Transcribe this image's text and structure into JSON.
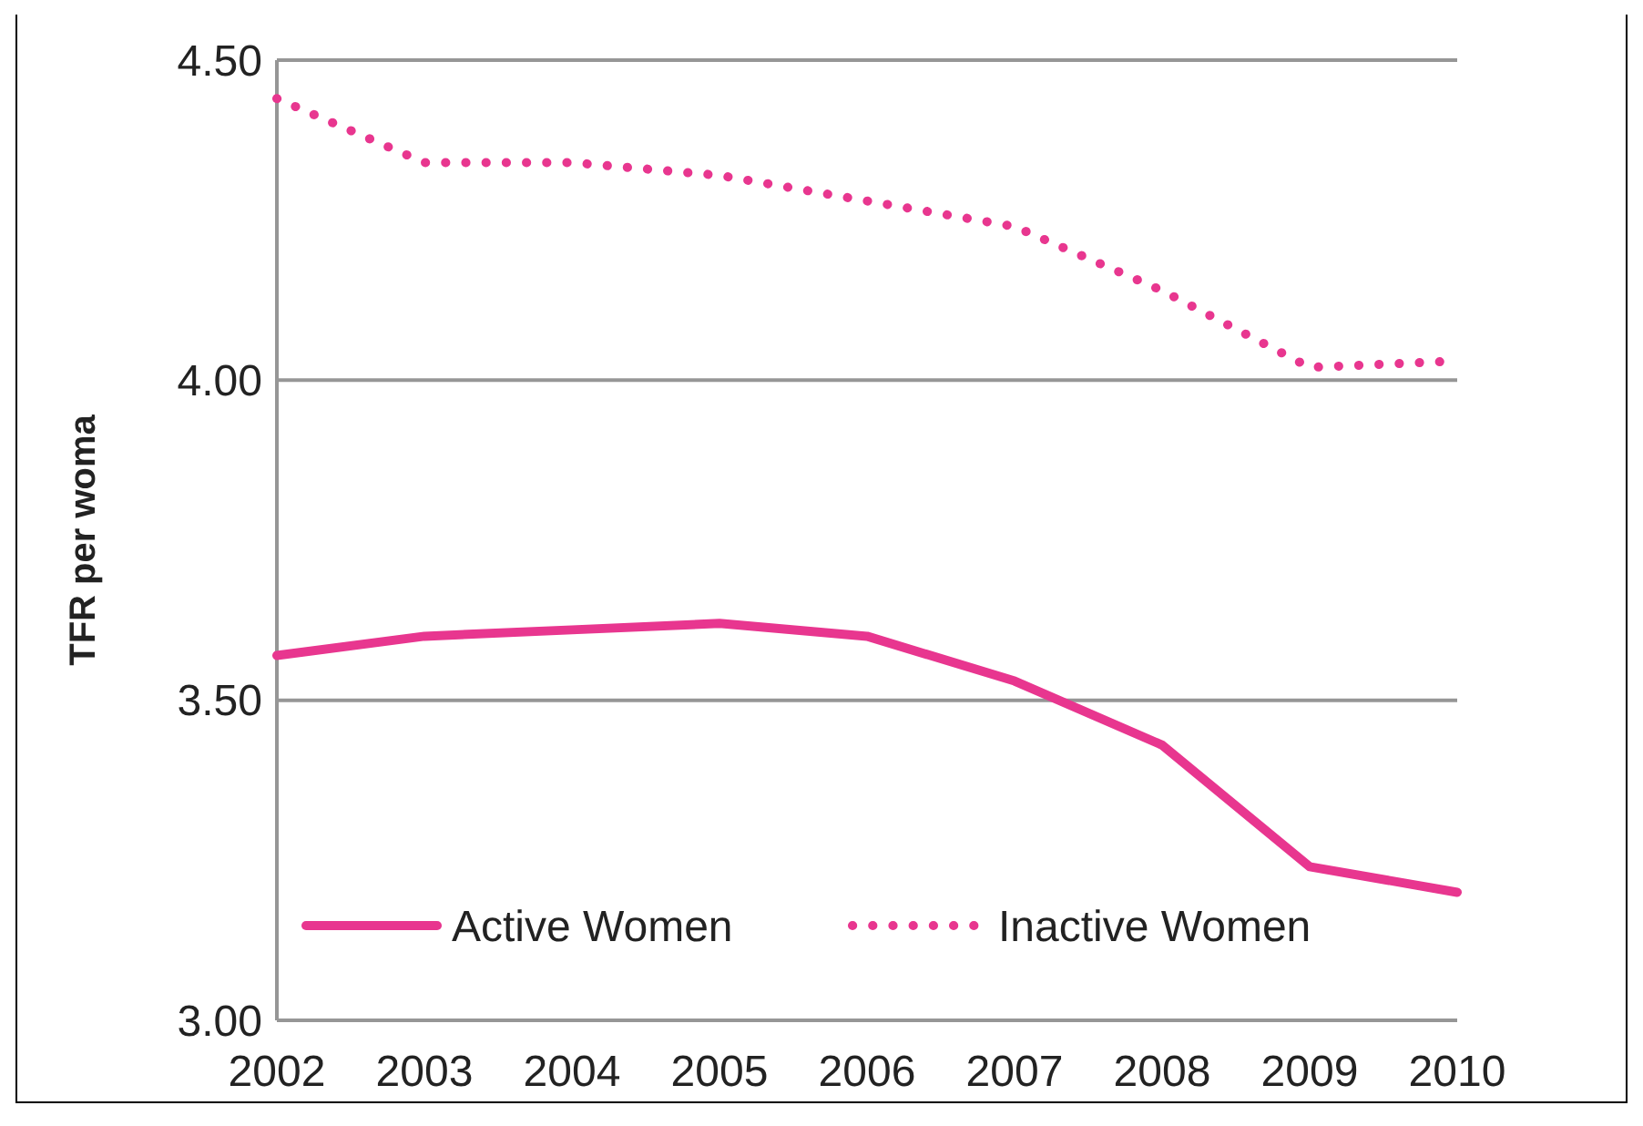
{
  "chart_data": {
    "type": "line",
    "ylabel": "TFR per woma",
    "categories": [
      "2002",
      "2003",
      "2004",
      "2005",
      "2006",
      "2007",
      "2008",
      "2009",
      "2010"
    ],
    "series": [
      {
        "name": "Active Women",
        "color": "#e8368f",
        "line_style": "solid",
        "values": [
          3.57,
          3.6,
          3.61,
          3.62,
          3.6,
          3.53,
          3.43,
          3.24,
          3.2
        ]
      },
      {
        "name": "Inactive Women",
        "color": "#e8368f",
        "line_style": "dotted",
        "values": [
          4.44,
          4.34,
          4.34,
          4.32,
          4.28,
          4.24,
          4.14,
          4.02,
          4.03
        ]
      }
    ],
    "ylim": [
      3.0,
      4.5
    ],
    "yticks": [
      {
        "value": 3.0,
        "label": "3.00"
      },
      {
        "value": 3.5,
        "label": "3.50"
      },
      {
        "value": 4.0,
        "label": "4.00"
      },
      {
        "value": 4.5,
        "label": "4.50"
      }
    ],
    "grid": "y",
    "legend": "bottom",
    "marker": "none"
  }
}
